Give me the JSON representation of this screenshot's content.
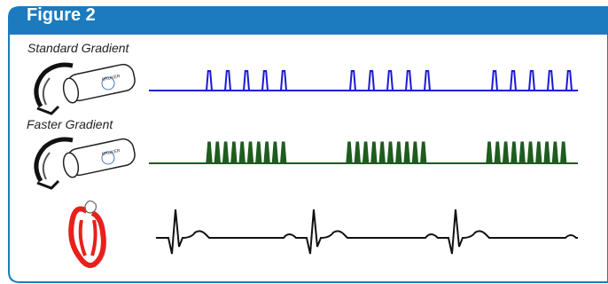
{
  "figure": {
    "title": "Figure 2",
    "frame_color": "#1b7bbe"
  },
  "rows": [
    {
      "label": "Standard Gradient",
      "icon": "mri-scanner-icon",
      "waveform": "pulse-train",
      "color": "#1a1ad6",
      "pulses_per_burst": 5,
      "bursts": 3
    },
    {
      "label": "Faster Gradient",
      "icon": "mri-scanner-icon",
      "waveform": "pulse-train",
      "color": "#1f5c1f",
      "pulses_per_burst": 10,
      "bursts": 3
    },
    {
      "label": "",
      "icon": "heart-icon",
      "waveform": "ecg",
      "color": "#111111",
      "beats": 3
    }
  ],
  "scanner_brand_text": "BRUKER",
  "heart_color": "#e8201c"
}
